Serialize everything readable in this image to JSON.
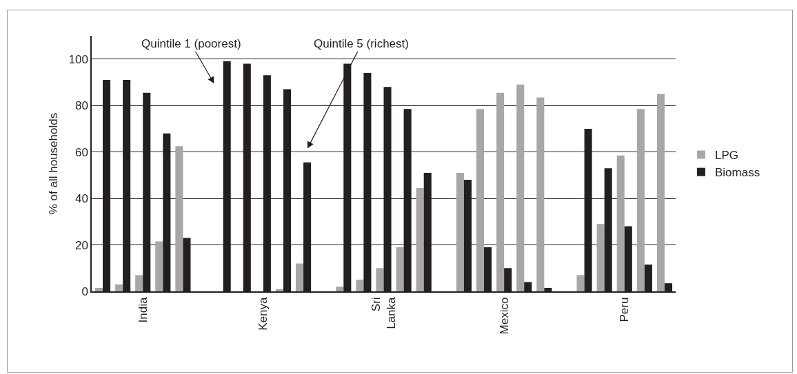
{
  "chart_data": {
    "type": "bar",
    "ylabel": "% of all households",
    "categories": [
      null,
      null,
      "India",
      null,
      null,
      null,
      null,
      null,
      "Kenya",
      null,
      null,
      null,
      null,
      null,
      "Sri\nLanka",
      null,
      null,
      null,
      null,
      null,
      "Mexico",
      null,
      null,
      null,
      null,
      null,
      "Peru",
      null,
      null
    ],
    "series": [
      {
        "name": "LPG",
        "color": "#a7a7aa",
        "values": [
          1.5,
          3,
          7,
          21.5,
          62.5,
          null,
          0,
          0,
          0,
          1,
          12,
          null,
          2,
          5,
          10,
          19,
          44.5,
          null,
          51,
          78.5,
          85.5,
          89,
          83.5,
          null,
          7,
          29,
          58.5,
          78.5,
          85
        ]
      },
      {
        "name": "Biomass",
        "color": "#231f20",
        "values": [
          91,
          91,
          85.5,
          68,
          23,
          null,
          99,
          98,
          93,
          87,
          55.5,
          null,
          98,
          94,
          88,
          78.5,
          51,
          null,
          48,
          19,
          10,
          4,
          1.5,
          null,
          70,
          53,
          28,
          11.5,
          3.5
        ]
      }
    ],
    "ylim": [
      0,
      110
    ],
    "yticks": [
      0,
      20,
      40,
      60,
      80,
      100
    ],
    "grid": "y",
    "legend": "right",
    "annotations": [
      "Quintile 1 (poorest)",
      "Quintile 5 (richest)"
    ]
  }
}
